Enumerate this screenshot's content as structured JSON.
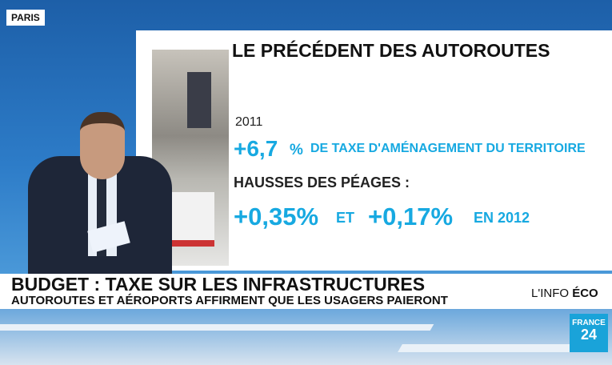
{
  "location": "PARIS",
  "panel": {
    "title": "LE PRÉCÉDENT DES AUTOROUTES",
    "year": "2011",
    "stat": "+6,7",
    "stat_unit": "%",
    "stat_text": "DE TAXE D'AMÉNAGEMENT DU TERRITOIRE",
    "subtitle": "HAUSSES DES PÉAGES :",
    "rise_1": "+0,35%",
    "conjunction": "ET",
    "rise_2": "+0,17%",
    "year_2": "EN 2012"
  },
  "banner": {
    "headline": "BUDGET : TAXE SUR LES INFRASTRUCTURES",
    "subline": "AUTOROUTES ET AÉROPORTS AFFIRMENT QUE LES USAGERS PAIERONT",
    "section": "L'INFO",
    "section_bold": "ÉCO"
  },
  "logo": {
    "line_1": "FRANCE",
    "line_2": "24"
  }
}
